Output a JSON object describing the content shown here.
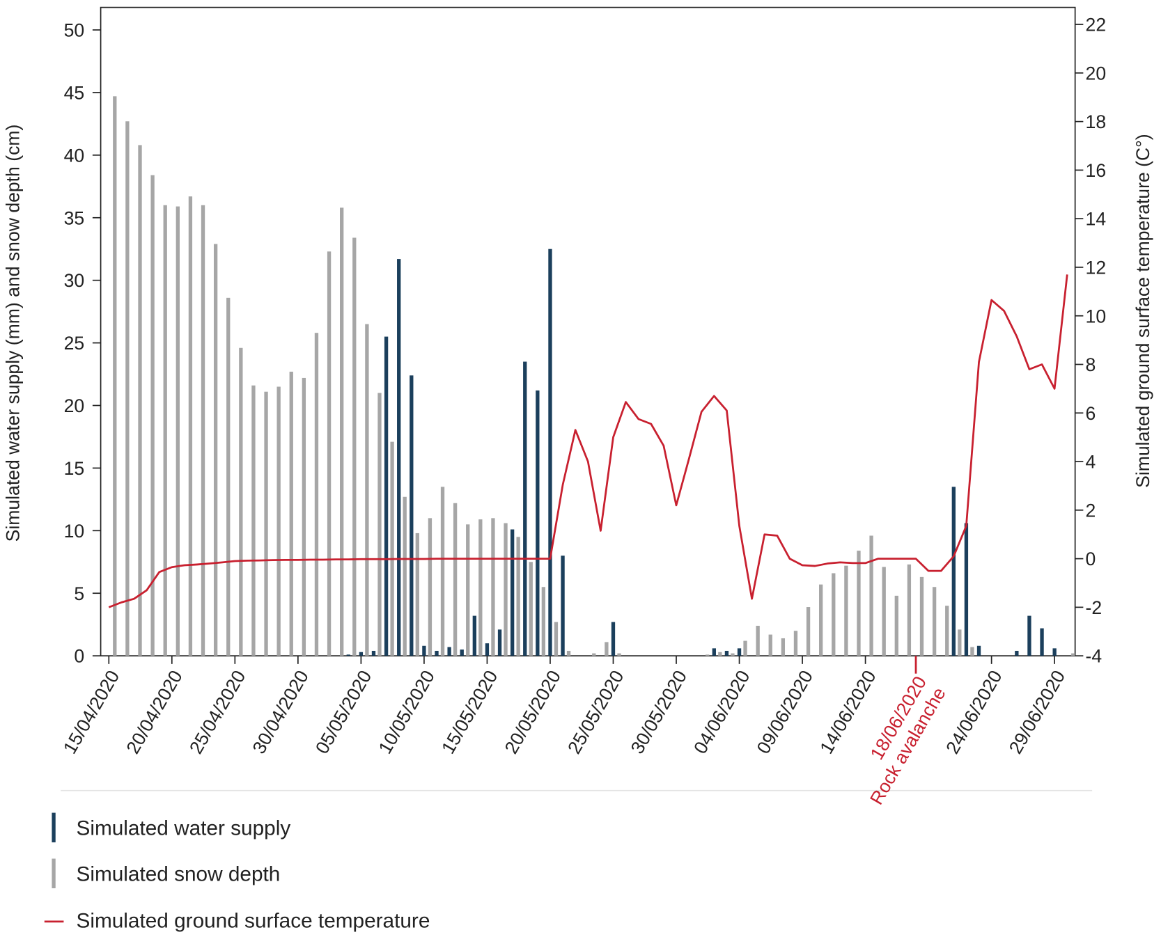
{
  "chart_data": {
    "type": "bar-line",
    "ylabel": "Simulated water supply (mm) and snow depth (cm)",
    "y2label": "Simulated ground surface temperature (C°)",
    "categories": [
      "15/04/2020",
      null,
      null,
      null,
      null,
      "20/04/2020",
      null,
      null,
      null,
      null,
      "25/04/2020",
      null,
      null,
      null,
      null,
      "30/04/2020",
      null,
      null,
      null,
      null,
      "05/05/2020",
      null,
      null,
      null,
      null,
      "10/05/2020",
      null,
      null,
      null,
      null,
      "15/05/2020",
      null,
      null,
      null,
      null,
      "20/05/2020",
      null,
      null,
      null,
      null,
      "25/05/2020",
      null,
      null,
      null,
      null,
      "30/05/2020",
      null,
      null,
      null,
      null,
      "04/06/2020",
      null,
      null,
      null,
      null,
      "09/06/2020",
      null,
      null,
      null,
      null,
      "14/06/2020",
      null,
      null,
      null,
      "18/06/2020",
      null,
      null,
      null,
      null,
      null,
      "24/06/2020",
      null,
      null,
      null,
      null,
      "29/06/2020",
      null
    ],
    "annotations": [
      {
        "category": "18/06/2020",
        "text": "Rock avalanche",
        "color": "#c8202f"
      }
    ],
    "series": [
      {
        "name": "Simulated water supply",
        "type": "bar",
        "color": "#1b3f5c",
        "values": [
          0,
          0,
          0,
          0,
          0,
          0,
          0,
          0,
          0,
          0,
          0,
          0,
          0,
          0,
          0,
          0,
          0,
          0,
          0,
          0.1,
          0.3,
          0.4,
          25.5,
          31.7,
          22.4,
          0.8,
          0.4,
          0.7,
          0.5,
          3.2,
          1.0,
          2.1,
          10.1,
          23.5,
          21.2,
          32.5,
          8.0,
          0,
          0,
          0,
          2.7,
          0,
          0,
          0,
          0,
          0,
          0,
          0,
          0.6,
          0.4,
          0.6,
          0,
          0,
          0,
          0,
          0,
          0,
          0,
          0,
          0,
          0,
          0,
          0,
          0,
          0,
          0,
          0,
          13.5,
          10.6,
          0.8,
          0,
          0,
          0.4,
          3.2,
          2.2,
          0.6,
          0
        ]
      },
      {
        "name": "Simulated snow depth",
        "type": "bar",
        "color": "#a6a6a6",
        "values": [
          44.7,
          42.7,
          40.8,
          38.4,
          36.0,
          35.9,
          36.7,
          36.0,
          32.9,
          28.6,
          24.6,
          21.6,
          21.1,
          21.5,
          22.7,
          22.2,
          25.8,
          32.3,
          35.8,
          33.4,
          26.5,
          21.0,
          17.1,
          12.7,
          9.8,
          11.0,
          13.5,
          12.2,
          10.5,
          10.9,
          11.0,
          10.6,
          9.5,
          7.5,
          5.5,
          2.7,
          0.4,
          0,
          0.2,
          1.1,
          0.2,
          0,
          0,
          0,
          0,
          0,
          0,
          0.1,
          0.3,
          0.2,
          1.2,
          2.4,
          1.7,
          1.4,
          2.0,
          3.9,
          5.7,
          6.6,
          7.2,
          8.4,
          9.6,
          7.1,
          4.8,
          7.3,
          6.3,
          5.5,
          4.0,
          2.1,
          0.7,
          0,
          0,
          0,
          0,
          0,
          0,
          0,
          0.2
        ]
      },
      {
        "name": "Simulated ground surface temperature",
        "type": "line",
        "axis": "y2",
        "color": "#c8202f",
        "values": [
          -2.0,
          -1.8,
          -1.65,
          -1.3,
          -0.55,
          -0.35,
          -0.27,
          -0.24,
          -0.2,
          -0.15,
          -0.1,
          -0.08,
          -0.07,
          -0.06,
          -0.05,
          -0.05,
          -0.04,
          -0.04,
          -0.03,
          -0.03,
          -0.02,
          -0.02,
          -0.02,
          -0.01,
          -0.01,
          -0.01,
          0,
          0,
          0,
          0,
          0,
          0,
          0,
          0,
          0,
          0,
          3.05,
          5.3,
          4.0,
          1.15,
          5.0,
          6.45,
          5.75,
          5.55,
          4.65,
          2.2,
          4.1,
          6.05,
          6.7,
          6.1,
          1.35,
          -1.65,
          1.0,
          0.95,
          0,
          -0.27,
          -0.3,
          -0.2,
          -0.15,
          -0.18,
          -0.18,
          0,
          0,
          0,
          0,
          -0.5,
          -0.5,
          0.1,
          1.35,
          8.1,
          10.65,
          10.2,
          9.15,
          7.8,
          8.0,
          7.0,
          11.7
        ]
      }
    ],
    "ylim": [
      0,
      51.8
    ],
    "yticks": [
      0,
      5,
      10,
      15,
      20,
      25,
      30,
      35,
      40,
      45,
      50
    ],
    "y2lim": [
      -4,
      22.7
    ],
    "y2ticks": [
      -4,
      -2,
      0,
      2,
      4,
      6,
      8,
      10,
      12,
      14,
      16,
      18,
      20,
      22
    ],
    "grid": false
  }
}
